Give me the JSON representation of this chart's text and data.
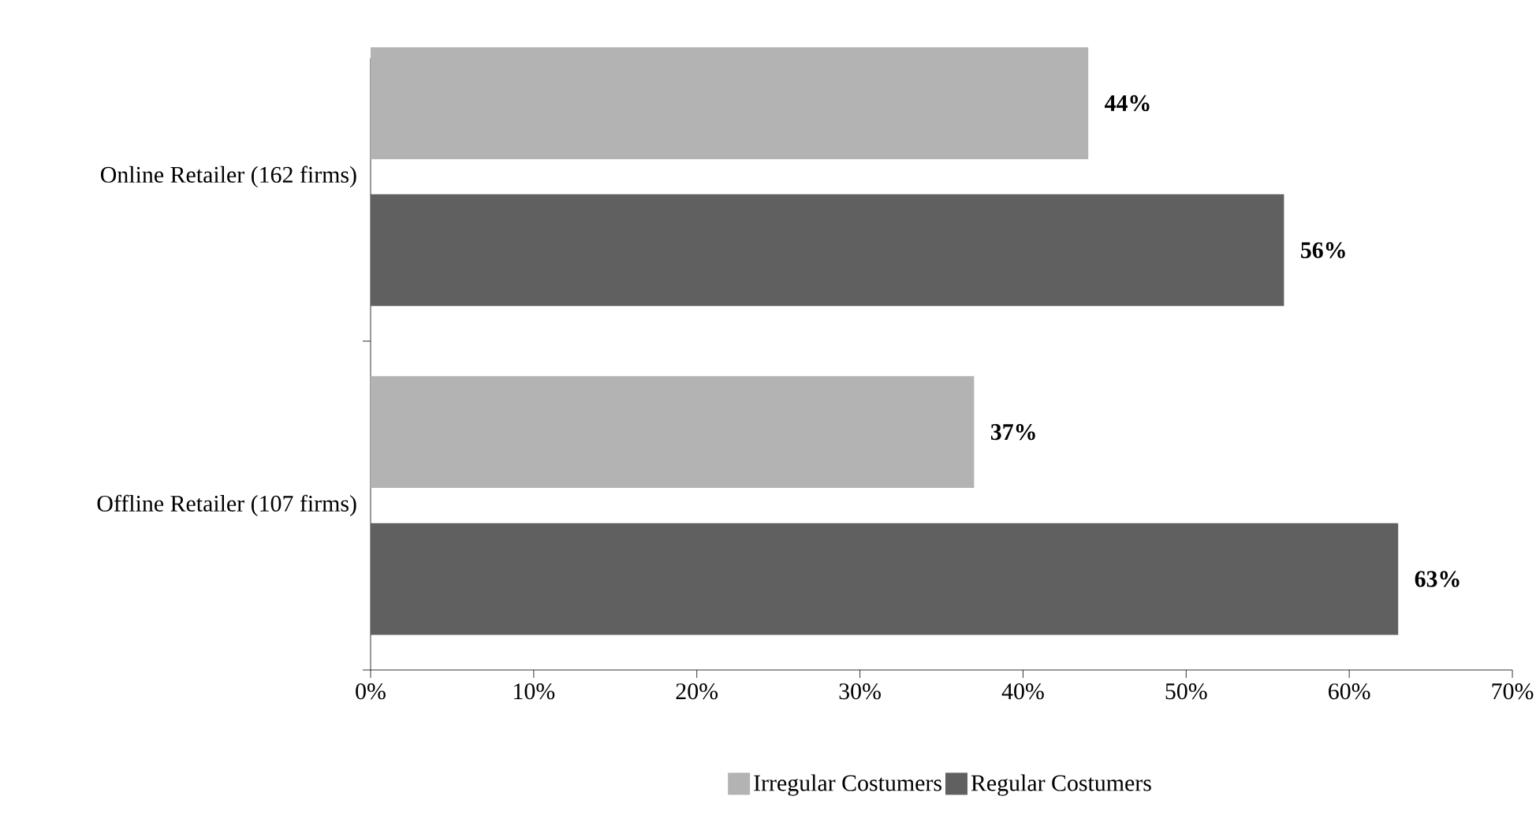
{
  "chart_data": {
    "type": "bar",
    "orientation": "horizontal",
    "categories": [
      "Online Retailer (162 firms)",
      "Offline Retailer (107 firms)"
    ],
    "series": [
      {
        "name": "Irregular Costumers",
        "color": "#b3b3b3",
        "values": [
          44,
          37
        ],
        "value_labels": [
          "44%",
          "37%"
        ]
      },
      {
        "name": "Regular Costumers",
        "color": "#5f605f",
        "values": [
          56,
          63
        ],
        "value_labels": [
          "56%",
          "63%"
        ]
      }
    ],
    "xlim": [
      0,
      70
    ],
    "xticks": [
      {
        "value": 0,
        "label": "0%"
      },
      {
        "value": 10,
        "label": "10%"
      },
      {
        "value": 20,
        "label": "20%"
      },
      {
        "value": 30,
        "label": "30%"
      },
      {
        "value": 40,
        "label": "40%"
      },
      {
        "value": 50,
        "label": "50%"
      },
      {
        "value": 60,
        "label": "60%"
      },
      {
        "value": 70,
        "label": "70%"
      }
    ],
    "legend": "bottom"
  }
}
